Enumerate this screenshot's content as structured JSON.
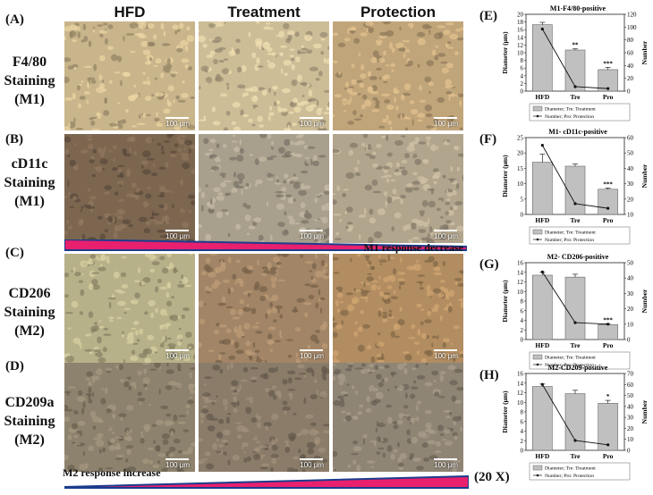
{
  "columns": [
    "HFD",
    "Treatment",
    "Protection"
  ],
  "rows": [
    {
      "letter": "(A)",
      "label_lines": [
        "F4/80",
        "Staining",
        "(M1)"
      ],
      "tones": [
        "#c9b58b",
        "#cdbd97",
        "#c1a57a"
      ]
    },
    {
      "letter": "(B)",
      "label_lines": [
        "cD11c",
        "Staining",
        "(M1)"
      ],
      "tones": [
        "#7c6650",
        "#a89f8c",
        "#b2a58d"
      ]
    },
    {
      "letter": "(C)",
      "label_lines": [
        "CD206",
        "Staining",
        "(M2)"
      ],
      "tones": [
        "#b7b18a",
        "#a28566",
        "#b28d61"
      ]
    },
    {
      "letter": "(D)",
      "label_lines": [
        "CD209a",
        "Staining",
        "(M2)"
      ],
      "tones": [
        "#8d826d",
        "#8a7c69",
        "#8f8575"
      ]
    }
  ],
  "scale_text": "100 μm",
  "m1_response": "M1 response decrease",
  "m2_response": "M2 response increase",
  "magnification": "(20 X)",
  "charts": [
    {
      "letter": "(E)",
      "chart_data": {
        "type": "bar",
        "title": "M1-F4/80-positive",
        "categories": [
          "HFD",
          "Tre",
          "Pro"
        ],
        "series": [
          {
            "name": "Diameter; Tre: Treatment",
            "type": "bar",
            "values": [
              17.3,
              10.7,
              5.6
            ],
            "errors": [
              0.6,
              0.3,
              0.6
            ]
          },
          {
            "name": "Number; Pro: Protection",
            "type": "line",
            "values": [
              97,
              7,
              4
            ]
          }
        ],
        "ylabel": "Diameter (μm)",
        "ylim": [
          0,
          20
        ],
        "yticks": [
          0,
          2,
          4,
          6,
          8,
          10,
          12,
          14,
          16,
          18,
          20
        ],
        "y2label": "Number",
        "y2lim": [
          0,
          120
        ],
        "y2ticks": [
          0,
          20,
          40,
          60,
          80,
          100,
          120
        ],
        "annotations": [
          "",
          "**",
          "***"
        ]
      }
    },
    {
      "letter": "(F)",
      "chart_data": {
        "type": "bar",
        "title": "M1- cD11c-positive",
        "categories": [
          "HFD",
          "Tre",
          "Pro"
        ],
        "series": [
          {
            "name": "Diameter; Tre: Treatment",
            "type": "bar",
            "values": [
              17.0,
              15.7,
              8.2
            ],
            "errors": [
              2.6,
              0.7,
              0.4
            ]
          },
          {
            "name": "Number; Pro: Protection",
            "type": "line",
            "values": [
              55,
              17,
              14
            ]
          }
        ],
        "ylabel": "Diameter (μm)",
        "ylim": [
          0,
          25
        ],
        "yticks": [
          0,
          5,
          10,
          15,
          20,
          25
        ],
        "y2label": "Number",
        "y2lim": [
          10,
          60
        ],
        "y2ticks": [
          10,
          20,
          30,
          40,
          50,
          60
        ],
        "annotations": [
          "",
          "",
          "***"
        ]
      }
    },
    {
      "letter": "(G)",
      "chart_data": {
        "type": "bar",
        "title": "M2- CD206-positive",
        "categories": [
          "HFD",
          "Tre",
          "Pro"
        ],
        "series": [
          {
            "name": "Diameter; Tre: Treatment",
            "type": "bar",
            "values": [
              13.4,
              13.0,
              3.1
            ],
            "errors": [
              0.6,
              0.6,
              0.2
            ]
          },
          {
            "name": "Number; Pro: Protection",
            "type": "line",
            "values": [
              44,
              11,
              10
            ]
          }
        ],
        "ylabel": "Diameter (μm)",
        "ylim": [
          0,
          16
        ],
        "yticks": [
          0,
          2,
          4,
          6,
          8,
          10,
          12,
          14,
          16
        ],
        "y2label": "Number",
        "y2lim": [
          0,
          50
        ],
        "y2ticks": [
          0,
          10,
          20,
          30,
          40,
          50
        ],
        "annotations": [
          "",
          "",
          "***"
        ]
      }
    },
    {
      "letter": "(H)",
      "chart_data": {
        "type": "bar",
        "title": "M2-CD209-positive",
        "categories": [
          "HFD",
          "Tre",
          "Pro"
        ],
        "series": [
          {
            "name": "Diameter; Tre: Treatment",
            "type": "bar",
            "values": [
              13.3,
              11.8,
              9.8
            ],
            "errors": [
              0.5,
              0.7,
              0.6
            ]
          },
          {
            "name": "Number; Pro: Protection",
            "type": "line",
            "values": [
              60,
              9,
              5
            ]
          }
        ],
        "ylabel": "Diameter (μm)",
        "ylim": [
          0,
          16
        ],
        "yticks": [
          0,
          2,
          4,
          6,
          8,
          10,
          12,
          14,
          16
        ],
        "y2label": "Number",
        "y2lim": [
          0,
          70
        ],
        "y2ticks": [
          0,
          10,
          20,
          30,
          40,
          50,
          60,
          70
        ],
        "annotations": [
          "",
          "",
          "*"
        ]
      }
    }
  ]
}
